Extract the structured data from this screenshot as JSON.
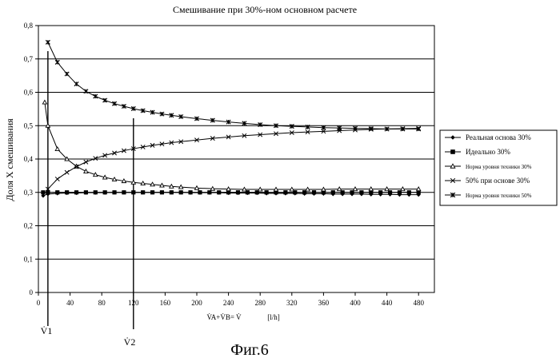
{
  "chart_data": {
    "type": "line",
    "title": "Смешивание при 30%-ном основном расчете",
    "ylabel": "Доля X смешивания",
    "xlabel": "V̇A+V̇B= V̇",
    "xunit": "[l/h]",
    "xlim": [
      0,
      500
    ],
    "ylim": [
      0,
      0.8
    ],
    "xticks": [
      0,
      40,
      80,
      120,
      160,
      200,
      240,
      280,
      320,
      360,
      400,
      440,
      480
    ],
    "xtick_labels": [
      "0",
      "40",
      "80",
      "120",
      "160",
      "200",
      "240",
      "280",
      "320",
      "360",
      "400",
      "440",
      "480"
    ],
    "yticks": [
      0,
      0.1,
      0.2,
      0.3,
      0.4,
      0.5,
      0.6,
      0.7,
      0.8
    ],
    "ytick_labels": [
      "0",
      "0,1",
      "0,2",
      "0,3",
      "0,4",
      "0,5",
      "0,6",
      "0,7",
      "0,8"
    ],
    "grid": "horizontal",
    "legend_position": "right",
    "series": [
      {
        "name": "Реальная основа 30%",
        "marker": "diamond",
        "x": [
          6,
          12,
          24,
          36,
          48,
          60,
          72,
          84,
          96,
          108,
          120,
          132,
          144,
          156,
          168,
          180,
          192,
          204,
          216,
          228,
          240,
          252,
          264,
          276,
          288,
          300,
          312,
          324,
          336,
          348,
          360,
          372,
          384,
          396,
          408,
          420,
          432,
          444,
          456,
          468,
          480
        ],
        "y": [
          0.29,
          0.295,
          0.297,
          0.298,
          0.298,
          0.299,
          0.299,
          0.299,
          0.3,
          0.3,
          0.3,
          0.3,
          0.3,
          0.3,
          0.3,
          0.3,
          0.299,
          0.299,
          0.299,
          0.299,
          0.298,
          0.298,
          0.298,
          0.298,
          0.297,
          0.297,
          0.297,
          0.297,
          0.296,
          0.296,
          0.296,
          0.295,
          0.295,
          0.295,
          0.295,
          0.294,
          0.294,
          0.294,
          0.293,
          0.293,
          0.293
        ]
      },
      {
        "name": "Идеально 30%",
        "marker": "square",
        "x": [
          6,
          12,
          24,
          36,
          48,
          60,
          72,
          84,
          96,
          108,
          120,
          132,
          144,
          156,
          168,
          180,
          192,
          204,
          216,
          228,
          240,
          252,
          264,
          276,
          288,
          300,
          312,
          324,
          336,
          348,
          360,
          372,
          384,
          396,
          408,
          420,
          432,
          444,
          456,
          468,
          480
        ],
        "y": [
          0.3,
          0.3,
          0.3,
          0.3,
          0.3,
          0.3,
          0.3,
          0.3,
          0.3,
          0.3,
          0.3,
          0.3,
          0.3,
          0.3,
          0.3,
          0.3,
          0.3,
          0.3,
          0.3,
          0.3,
          0.3,
          0.3,
          0.3,
          0.3,
          0.3,
          0.3,
          0.3,
          0.3,
          0.3,
          0.3,
          0.3,
          0.3,
          0.3,
          0.3,
          0.3,
          0.3,
          0.3,
          0.3,
          0.3,
          0.3,
          0.3
        ]
      },
      {
        "name": "Норма уровня техники 30%",
        "marker": "triangle",
        "x": [
          8,
          12,
          24,
          36,
          48,
          60,
          72,
          84,
          96,
          108,
          120,
          132,
          144,
          156,
          168,
          180,
          200,
          220,
          240,
          260,
          280,
          300,
          320,
          340,
          360,
          380,
          400,
          420,
          440,
          460,
          480
        ],
        "y": [
          0.57,
          0.5,
          0.43,
          0.4,
          0.378,
          0.363,
          0.353,
          0.345,
          0.339,
          0.334,
          0.33,
          0.327,
          0.324,
          0.321,
          0.318,
          0.316,
          0.313,
          0.311,
          0.31,
          0.309,
          0.309,
          0.309,
          0.309,
          0.309,
          0.309,
          0.31,
          0.31,
          0.31,
          0.31,
          0.31,
          0.31
        ]
      },
      {
        "name": "50% при основе 30%",
        "marker": "x",
        "x": [
          12,
          24,
          36,
          48,
          60,
          72,
          84,
          96,
          108,
          120,
          132,
          144,
          156,
          168,
          180,
          200,
          220,
          240,
          260,
          280,
          300,
          320,
          340,
          360,
          380,
          400,
          420,
          440,
          460,
          480
        ],
        "y": [
          0.31,
          0.34,
          0.36,
          0.377,
          0.391,
          0.402,
          0.411,
          0.418,
          0.425,
          0.431,
          0.436,
          0.441,
          0.445,
          0.449,
          0.452,
          0.457,
          0.462,
          0.466,
          0.47,
          0.473,
          0.476,
          0.479,
          0.481,
          0.483,
          0.485,
          0.487,
          0.489,
          0.49,
          0.491,
          0.492
        ]
      },
      {
        "name": "Норма уровня техники 50%",
        "marker": "star",
        "x": [
          12,
          24,
          36,
          48,
          60,
          72,
          84,
          96,
          108,
          120,
          132,
          144,
          156,
          168,
          180,
          200,
          220,
          240,
          260,
          280,
          300,
          320,
          340,
          360,
          380,
          400,
          420,
          440,
          460,
          480
        ],
        "y": [
          0.75,
          0.69,
          0.655,
          0.625,
          0.603,
          0.588,
          0.576,
          0.566,
          0.558,
          0.551,
          0.545,
          0.54,
          0.535,
          0.531,
          0.527,
          0.521,
          0.516,
          0.511,
          0.507,
          0.503,
          0.5,
          0.498,
          0.496,
          0.494,
          0.493,
          0.492,
          0.491,
          0.49,
          0.49,
          0.49
        ]
      }
    ],
    "annotations": {
      "v1_label": "V̇1",
      "v2_label": "V̇2",
      "v1_x": 12,
      "v2_x": 120
    }
  },
  "figure_caption": "Фиг.6"
}
